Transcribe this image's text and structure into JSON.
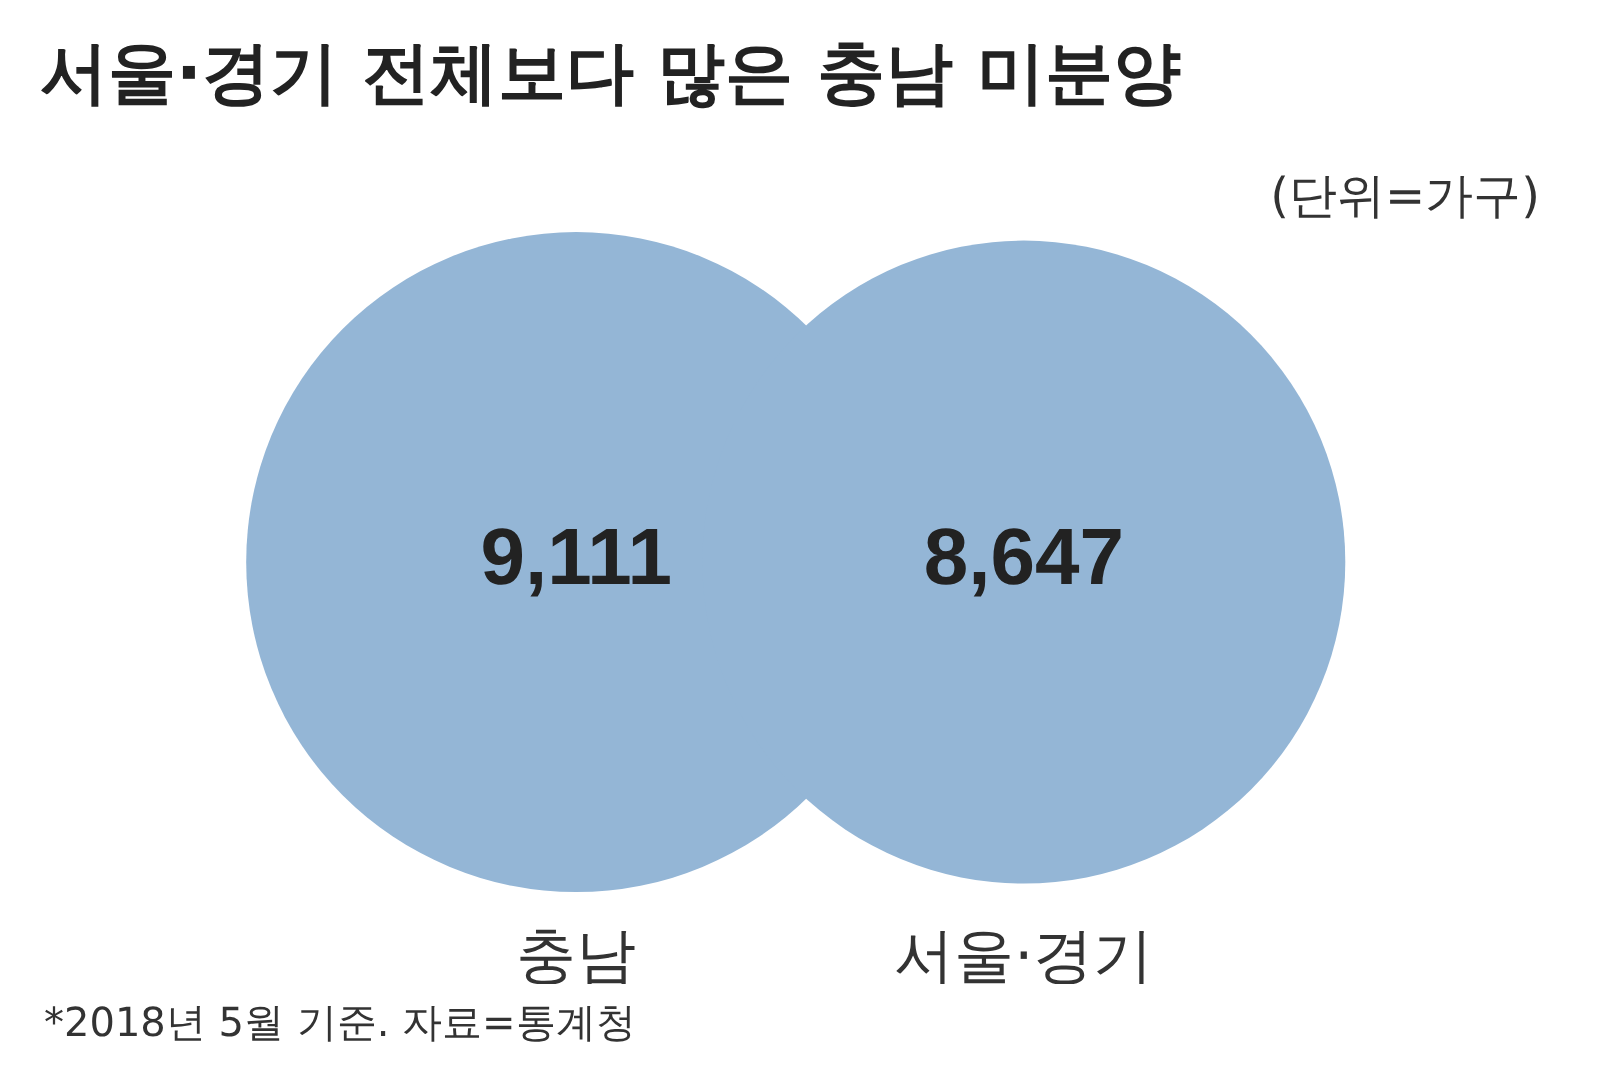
{
  "chart_data": {
    "type": "other",
    "title": "서울·경기 전체보다 많은 충남 미분양",
    "subtitle": "(단위=가구)",
    "categories": [
      "충남",
      "서울·경기"
    ],
    "values": [
      9111,
      8647
    ],
    "color": "#94b6d6",
    "value_labels": [
      "9,111",
      "8,647"
    ],
    "annotations": [
      "*2018년 5월 기준. 자료=통계청"
    ]
  }
}
